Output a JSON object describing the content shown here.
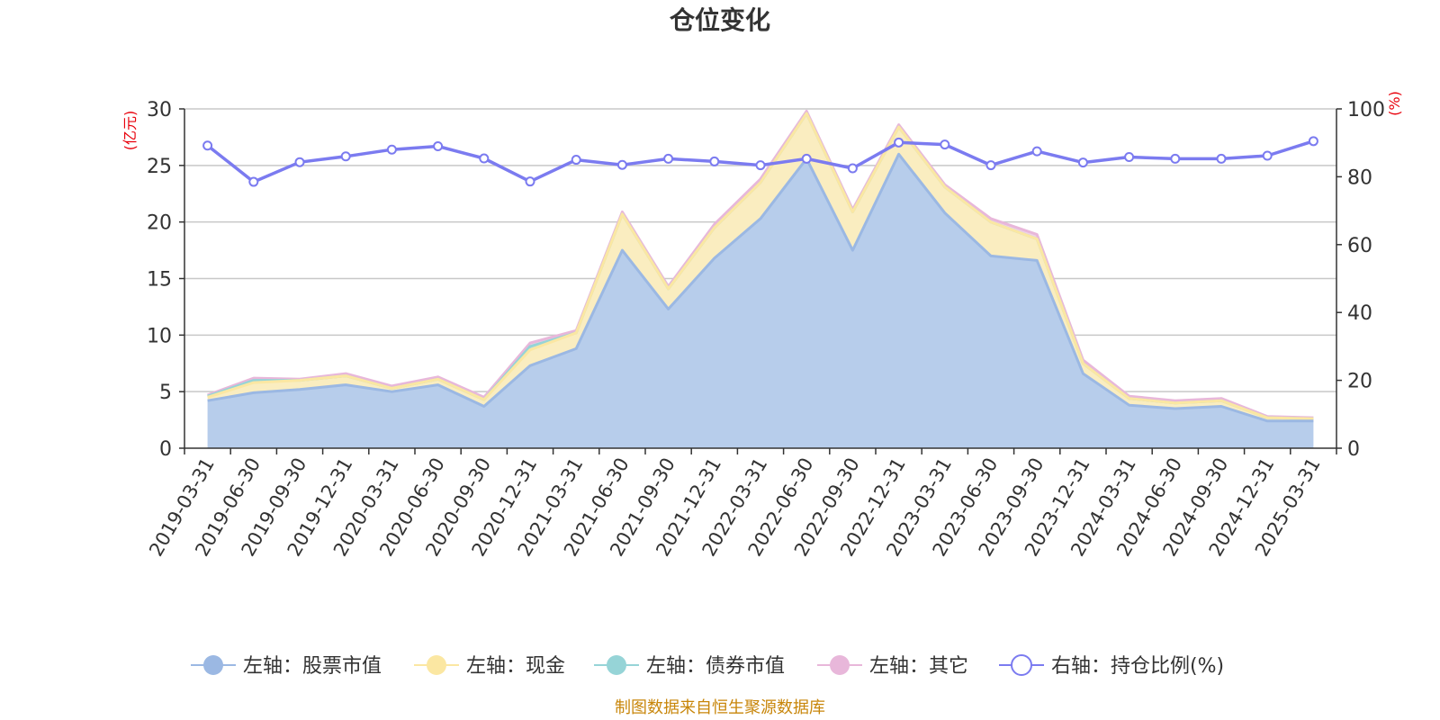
{
  "chart_data": {
    "type": "area",
    "title": "仓位变化",
    "footer": "制图数据来自恒生聚源数据库",
    "left_unit": "(亿元)",
    "right_unit": "(%)",
    "left_ylim": [
      0,
      30
    ],
    "left_ticks": [
      0,
      5,
      10,
      15,
      20,
      25,
      30
    ],
    "right_ylim": [
      0,
      100
    ],
    "right_ticks": [
      0,
      20,
      40,
      60,
      80,
      100
    ],
    "grid": true,
    "legend_position": "bottom",
    "categories": [
      "2019-03-31",
      "2019-06-30",
      "2019-09-30",
      "2019-12-31",
      "2020-03-31",
      "2020-06-30",
      "2020-09-30",
      "2020-12-31",
      "2021-03-31",
      "2021-06-30",
      "2021-09-30",
      "2021-12-31",
      "2022-03-31",
      "2022-06-30",
      "2022-09-30",
      "2022-12-31",
      "2023-03-31",
      "2023-06-30",
      "2023-09-30",
      "2023-12-31",
      "2024-03-31",
      "2024-06-30",
      "2024-09-30",
      "2024-12-31",
      "2025-03-31"
    ],
    "series": [
      {
        "name": "左轴：股票市值",
        "axis": "left",
        "kind": "area",
        "color": "#9bb8e3",
        "fill": "#b7cdeb",
        "values": [
          4.2,
          4.9,
          5.2,
          5.6,
          5.0,
          5.6,
          3.7,
          7.3,
          8.8,
          17.5,
          12.3,
          16.8,
          20.3,
          25.6,
          17.5,
          26.0,
          20.8,
          17.0,
          16.6,
          6.6,
          3.8,
          3.5,
          3.7,
          2.4,
          2.4
        ]
      },
      {
        "name": "左轴：现金",
        "axis": "left",
        "kind": "area",
        "color": "#fbe7a2",
        "fill": "#faedc0",
        "values": [
          0.3,
          0.9,
          0.8,
          0.8,
          0.3,
          0.5,
          0.6,
          1.4,
          1.4,
          3.2,
          1.8,
          2.7,
          3.2,
          4.0,
          3.4,
          2.4,
          2.3,
          3.0,
          1.9,
          0.9,
          0.6,
          0.5,
          0.5,
          0.3,
          0.2
        ]
      },
      {
        "name": "左轴：债券市值",
        "axis": "left",
        "kind": "area",
        "color": "#96d4d7",
        "fill": "#b8e2e4",
        "values": [
          0.1,
          0.2,
          0.0,
          0.0,
          0.0,
          0.0,
          0.0,
          0.3,
          0.0,
          0.0,
          0.0,
          0.0,
          0.0,
          0.0,
          0.0,
          0.0,
          0.0,
          0.0,
          0.0,
          0.0,
          0.0,
          0.0,
          0.0,
          0.0,
          0.0
        ]
      },
      {
        "name": "左轴：其它",
        "axis": "left",
        "kind": "area",
        "color": "#e8b7da",
        "fill": "#eed2e6",
        "values": [
          0.1,
          0.2,
          0.1,
          0.2,
          0.2,
          0.2,
          0.2,
          0.3,
          0.2,
          0.2,
          0.2,
          0.3,
          0.3,
          0.2,
          0.2,
          0.2,
          0.2,
          0.3,
          0.4,
          0.3,
          0.2,
          0.2,
          0.2,
          0.1,
          0.1
        ]
      },
      {
        "name": "右轴：持仓比例(%)",
        "axis": "right",
        "kind": "line",
        "color": "#7b7bf0",
        "values": [
          89.2,
          78.5,
          84.3,
          86.0,
          88.0,
          89.0,
          85.4,
          78.6,
          85.0,
          83.5,
          85.3,
          84.5,
          83.4,
          85.3,
          82.5,
          90.1,
          89.5,
          83.4,
          87.5,
          84.2,
          85.8,
          85.3,
          85.3,
          86.2,
          90.5
        ]
      }
    ]
  }
}
